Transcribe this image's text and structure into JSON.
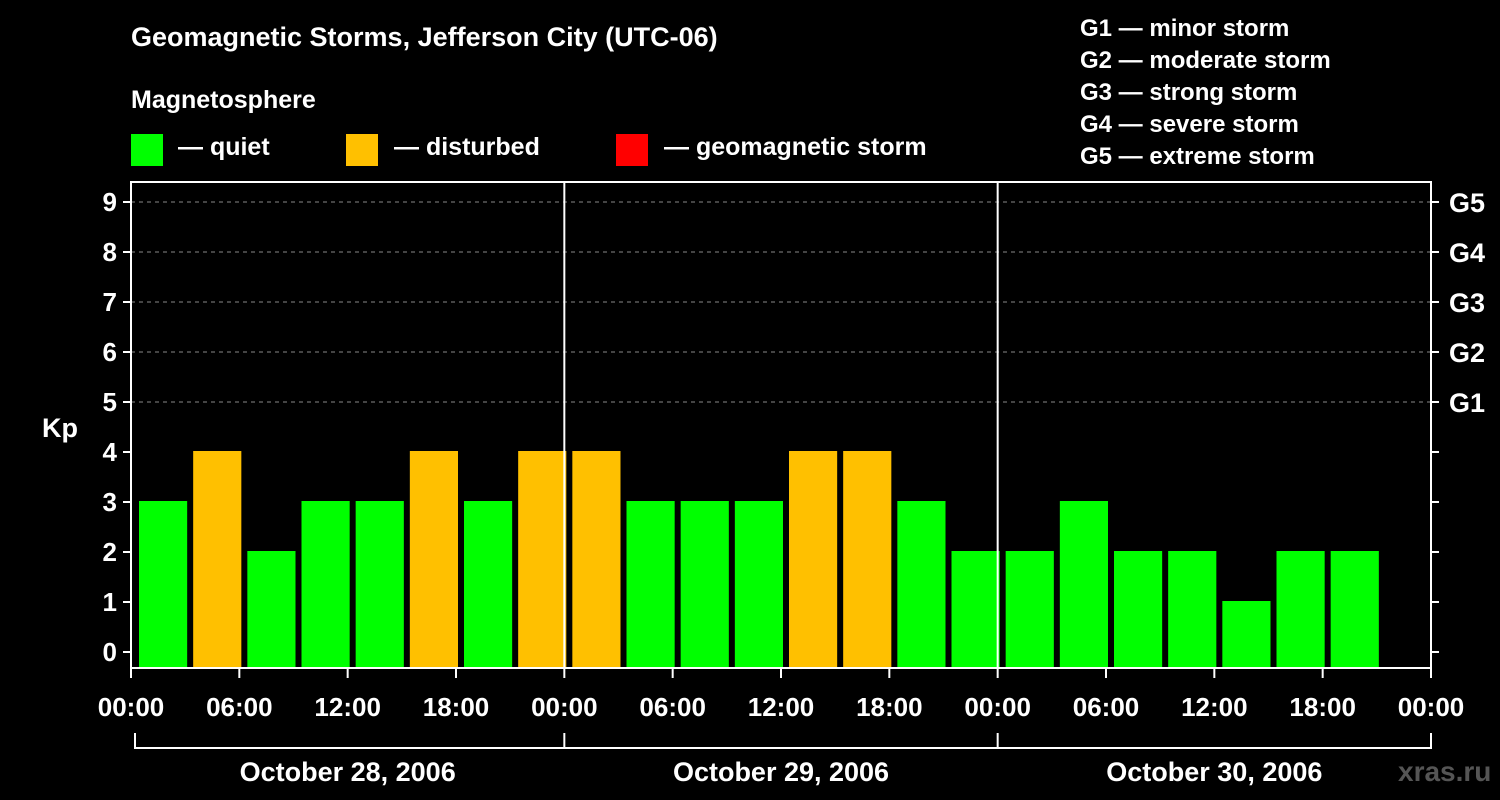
{
  "colors": {
    "quiet": "#00ff00",
    "disturbed": "#ffc000",
    "storm": "#ff0000",
    "background": "#000000",
    "grid": "#888888",
    "watermark": "#555555"
  },
  "header": {
    "title": "Geomagnetic Storms, Jefferson City (UTC-06)",
    "magnetosphere_label": "Magnetosphere"
  },
  "legend": [
    {
      "key": "quiet",
      "label": "— quiet"
    },
    {
      "key": "disturbed",
      "label": "— disturbed"
    },
    {
      "key": "storm",
      "label": "— geomagnetic storm"
    }
  ],
  "storm_scale": [
    "G1 — minor storm",
    "G2 — moderate storm",
    "G3 — strong storm",
    "G4 — severe storm",
    "G5 — extreme storm"
  ],
  "watermark": "xras.ru",
  "chart_data": {
    "type": "bar",
    "ylabel": "Kp",
    "ylim": [
      0,
      9
    ],
    "y_ticks": [
      0,
      1,
      2,
      3,
      4,
      5,
      6,
      7,
      8,
      9
    ],
    "right_axis_labels": [
      {
        "kp": 5,
        "label": "G1"
      },
      {
        "kp": 6,
        "label": "G2"
      },
      {
        "kp": 7,
        "label": "G3"
      },
      {
        "kp": 8,
        "label": "G4"
      },
      {
        "kp": 9,
        "label": "G5"
      }
    ],
    "x_tick_labels": [
      "00:00",
      "06:00",
      "12:00",
      "18:00",
      "00:00",
      "06:00",
      "12:00",
      "18:00",
      "00:00",
      "06:00",
      "12:00",
      "18:00",
      "00:00"
    ],
    "days": [
      "October 28, 2006",
      "October 29, 2006",
      "October 30, 2006"
    ],
    "interval_hours": 3,
    "values": [
      3,
      4,
      2,
      3,
      3,
      4,
      3,
      4,
      4,
      3,
      3,
      3,
      4,
      4,
      3,
      2,
      2,
      3,
      2,
      2,
      1,
      2,
      2
    ],
    "grid_dashed_levels": [
      5,
      6,
      7,
      8,
      9
    ]
  }
}
